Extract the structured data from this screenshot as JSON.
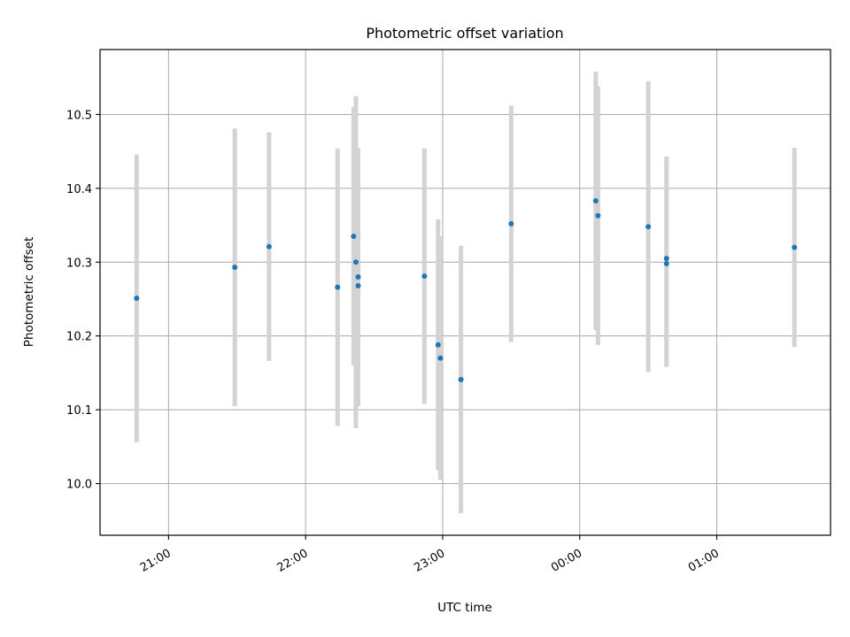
{
  "chart_data": {
    "type": "scatter",
    "title": "Photometric offset variation",
    "xlabel": "UTC time",
    "ylabel": "Photometric offset",
    "x_ticks": [
      "21:00",
      "22:00",
      "23:00",
      "00:00",
      "01:00"
    ],
    "y_ticks": [
      "10.0",
      "10.1",
      "10.2",
      "10.3",
      "10.4",
      "10.5"
    ],
    "x_tick_values_hours": [
      21,
      22,
      23,
      24,
      25
    ],
    "y_tick_values": [
      10.0,
      10.1,
      10.2,
      10.3,
      10.4,
      10.5
    ],
    "xlim_hours": [
      20.5,
      25.83
    ],
    "ylim": [
      9.93,
      10.588
    ],
    "grid": true,
    "colors": {
      "point": "#1f77b4",
      "errorbar": "#d3d3d3",
      "grid": "#b0b0b0",
      "axes": "#000000"
    },
    "points": [
      {
        "time": "20:46",
        "y": 10.251,
        "err": 0.195
      },
      {
        "time": "21:29",
        "y": 10.293,
        "err": 0.188
      },
      {
        "time": "21:44",
        "y": 10.321,
        "err": 0.155
      },
      {
        "time": "22:14",
        "y": 10.266,
        "err": 0.188
      },
      {
        "time": "22:21",
        "y": 10.335,
        "err": 0.175
      },
      {
        "time": "22:22",
        "y": 10.3,
        "err": 0.225
      },
      {
        "time": "22:23",
        "y": 10.28,
        "err": 0.175
      },
      {
        "time": "22:23",
        "y": 10.268,
        "err": 0.155
      },
      {
        "time": "22:52",
        "y": 10.281,
        "err": 0.173
      },
      {
        "time": "22:58",
        "y": 10.188,
        "err": 0.17
      },
      {
        "time": "22:59",
        "y": 10.17,
        "err": 0.165
      },
      {
        "time": "23:08",
        "y": 10.141,
        "err": 0.181
      },
      {
        "time": "23:30",
        "y": 10.352,
        "err": 0.16
      },
      {
        "time": "00:07",
        "y": 10.383,
        "err": 0.175
      },
      {
        "time": "00:08",
        "y": 10.363,
        "err": 0.175
      },
      {
        "time": "00:30",
        "y": 10.348,
        "err": 0.197
      },
      {
        "time": "00:38",
        "y": 10.305,
        "err": 0.138
      },
      {
        "time": "00:38",
        "y": 10.298,
        "err": 0.14
      },
      {
        "time": "01:34",
        "y": 10.32,
        "err": 0.135
      }
    ]
  }
}
